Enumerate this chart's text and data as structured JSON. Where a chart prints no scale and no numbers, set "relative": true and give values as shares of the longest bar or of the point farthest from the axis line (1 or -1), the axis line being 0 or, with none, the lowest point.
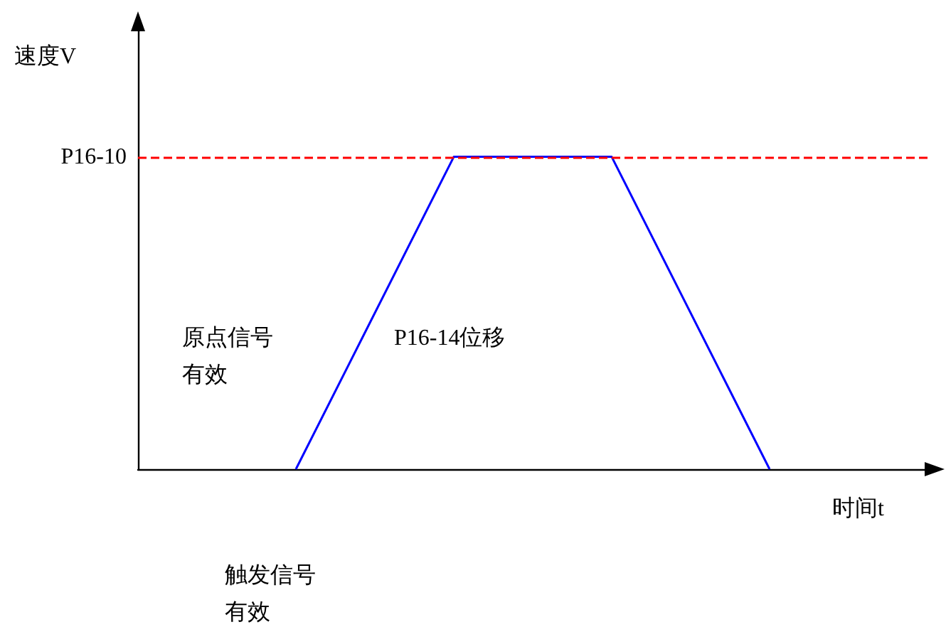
{
  "chart_data": {
    "type": "line",
    "relative": true,
    "xlabel": "时间t",
    "ylabel": "速度V",
    "categories": [
      null,
      null,
      null,
      null,
      null,
      null
    ],
    "series": [
      {
        "color": "#0000ff",
        "values": [
          null,
          0,
          1,
          1,
          0,
          null
        ]
      }
    ],
    "marker": "none",
    "line_style": "solid",
    "grid": false,
    "ref_lines": [
      {
        "axis": "y",
        "value": 1,
        "label": "P16-10",
        "color": "#ff0000",
        "line_style": "dashed"
      }
    ],
    "annotations": [
      "P16-14位移",
      "原点信号有效",
      "触发信号有效"
    ]
  }
}
